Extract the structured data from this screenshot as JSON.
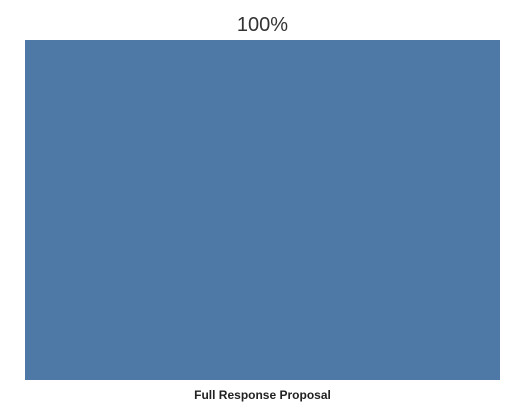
{
  "chart_data": {
    "type": "bar",
    "categories": [
      "Full Response Proposal"
    ],
    "values": [
      100
    ],
    "value_labels": [
      "100%"
    ],
    "ylim": [
      0,
      100
    ],
    "grid": false,
    "title": "",
    "xlabel": "",
    "ylabel": ""
  },
  "colors": {
    "bar": "#4e79a7",
    "background": "#ffffff",
    "text": "#333333"
  }
}
